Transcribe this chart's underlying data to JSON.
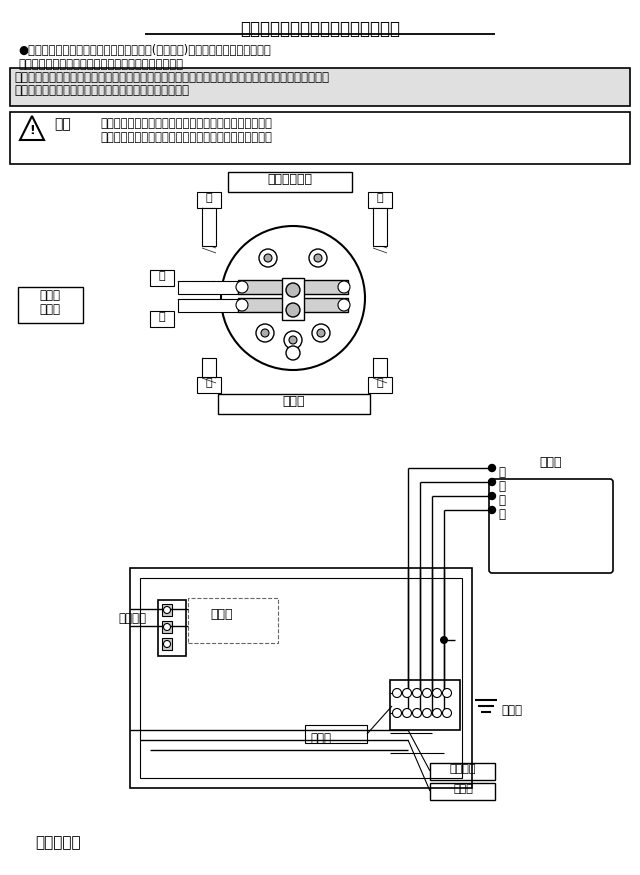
{
  "title": "ナトリウムソケットの結線について",
  "line1": "●ソケットの交換は、必ず工事店・電器店(有資格者)などに依頼してください。",
  "line2": "　一般の人の配線工事は法律的に禁止されています。",
  "box1_line1": "このソケットは弊社のトンネル照明器具に組み込まれた低圧ナトリウムランプ専用のソケットです。",
  "box1_line2": "その他の　器具への使用・交換は行わないでください。",
  "warn_title": "警告",
  "warn_line1": "交換は取扱説明書に従って正しくおこなってください。",
  "warn_line2": "施工に不備があると、火災・感電、おそれがあります。",
  "label_antei1ji": "安定器１次側",
  "label_kuro": "黒",
  "label_shiro": "白",
  "label_ao": "青",
  "label_aka": "赤",
  "label_antei2ji_l1": "安定器",
  "label_antei2ji_l2": "２次側",
  "label_densen": "電源側",
  "label_antei_r": "安定器",
  "label_kuro_r": "黒",
  "label_shiro_r": "白",
  "label_aka_r": "赤",
  "label_ao_r": "青",
  "label_socket": "ソケット",
  "label_lamp": "ランプ",
  "label_tanshi": "端子台",
  "label_earth": "アース",
  "label_earthwire": "アース線",
  "label_densenwire": "電源線",
  "label_kekka": "結　線　例"
}
